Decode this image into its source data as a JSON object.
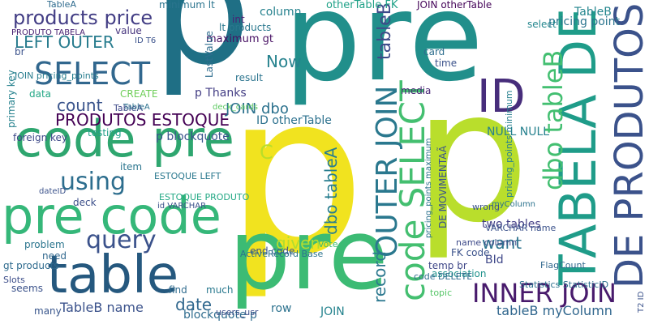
{
  "wordcloud": {
    "words": [
      {
        "text": "p",
        "color": "#1f6f85"
      },
      {
        "text": "p",
        "color": "#f1e31f"
      },
      {
        "text": "pre",
        "color": "#218f8b"
      },
      {
        "text": "p",
        "color": "#b9de2c"
      },
      {
        "text": "pre",
        "color": "#3cbb74"
      },
      {
        "text": "code pre",
        "color": "#2ea66f"
      },
      {
        "text": "pre code",
        "color": "#35b779"
      },
      {
        "text": "table",
        "color": "#25587e"
      },
      {
        "text": "TABELA DE",
        "color": "#1f9c89"
      },
      {
        "text": "DE PRODUTOS",
        "color": "#3b528b"
      },
      {
        "text": "ID",
        "color": "#472d7b"
      },
      {
        "text": "SELECT",
        "color": "#31678e"
      },
      {
        "text": "code SELECT",
        "color": "#44bf70"
      },
      {
        "text": "OUTER JOIN",
        "color": "#2a788e"
      },
      {
        "text": "dbo tableB",
        "color": "#43bf71"
      },
      {
        "text": "INNER JOIN",
        "color": "#481a6c"
      },
      {
        "text": "using",
        "color": "#2d6e8e"
      },
      {
        "text": "query",
        "color": "#3b528b"
      },
      {
        "text": "products price",
        "color": "#433e85"
      },
      {
        "text": "LEFT OUTER",
        "color": "#287c8e"
      },
      {
        "text": "PRODUTOS ESTOQUE",
        "color": "#440154"
      },
      {
        "text": "count",
        "color": "#3a548c"
      },
      {
        "text": "given",
        "color": "#b1dd2f"
      },
      {
        "text": "want",
        "color": "#2c738e"
      },
      {
        "text": "date",
        "color": "#31688e"
      },
      {
        "text": "record",
        "color": "#2a778e"
      },
      {
        "text": "dbo tableA",
        "color": "#287d8e"
      },
      {
        "text": "Now",
        "color": "#26828e"
      },
      {
        "text": "JOIN dbo",
        "color": "#2c728e"
      },
      {
        "text": "tableB",
        "color": "#3e4a89"
      },
      {
        "text": "tableB myColumn",
        "color": "#31678e"
      },
      {
        "text": "TableB name",
        "color": "#3b528b"
      },
      {
        "text": "blockquote p",
        "color": "#2f6c8e"
      },
      {
        "text": "JOIN",
        "color": "#25838e"
      },
      {
        "text": "row",
        "color": "#2c728e"
      },
      {
        "text": "two tables",
        "color": "#433e85"
      },
      {
        "text": "BId",
        "color": "#3f4889"
      },
      {
        "text": "C",
        "color": "#bade28"
      },
      {
        "text": "lt products",
        "color": "#2a788e"
      },
      {
        "text": "p Thanks",
        "color": "#433d84"
      },
      {
        "text": "NULL NULL",
        "color": "#26818e"
      },
      {
        "text": "pricing point",
        "color": "#2b758e"
      },
      {
        "text": "TableB",
        "color": "#24868e"
      },
      {
        "text": "DE MOVIMENTAÃ",
        "color": "#3b528b"
      },
      {
        "text": "ESTOQUE PRODUTO",
        "color": "#22a884"
      },
      {
        "text": "ID otherTable",
        "color": "#2c718e"
      },
      {
        "text": "p blockquote",
        "color": "#3a548c"
      },
      {
        "text": "maximum gt",
        "color": "#471063"
      },
      {
        "text": "column",
        "color": "#26828e"
      },
      {
        "text": "select",
        "color": "#24878e"
      },
      {
        "text": "JOIN otherTable",
        "color": "#450559"
      },
      {
        "text": "otherTable FK",
        "color": "#1fa187"
      },
      {
        "text": "minimum lt",
        "color": "#2b748e"
      },
      {
        "text": "TableA",
        "color": "#2f6b8e"
      },
      {
        "text": "int",
        "color": "#482374"
      },
      {
        "text": "value",
        "color": "#45337d"
      },
      {
        "text": "testing",
        "color": "#1fa088"
      },
      {
        "text": "item",
        "color": "#2b758e"
      },
      {
        "text": "deck",
        "color": "#3c4f8a"
      },
      {
        "text": "FK code",
        "color": "#3b528b"
      },
      {
        "text": "temp br",
        "color": "#3f4788"
      },
      {
        "text": "association",
        "color": "#20928c"
      },
      {
        "text": "media",
        "color": "#482576"
      },
      {
        "text": "card",
        "color": "#2e6e8e"
      },
      {
        "text": "time",
        "color": "#3b528b"
      },
      {
        "text": "name column",
        "color": "#3e4a89"
      },
      {
        "text": "find",
        "color": "#2f6b8e"
      },
      {
        "text": "much",
        "color": "#29798e"
      },
      {
        "text": "result",
        "color": "#2b748e"
      },
      {
        "text": "data",
        "color": "#22a785"
      },
      {
        "text": "CREATE",
        "color": "#6ece58"
      },
      {
        "text": "need",
        "color": "#31688e"
      },
      {
        "text": "problem",
        "color": "#2b758e"
      },
      {
        "text": "gt products",
        "color": "#2f6b8e"
      },
      {
        "text": "seems",
        "color": "#3b528b"
      },
      {
        "text": "many",
        "color": "#39568c"
      },
      {
        "text": "Slots",
        "color": "#3d4e8a"
      },
      {
        "text": "foreign key",
        "color": "#3e4989"
      },
      {
        "text": "primary key",
        "color": "#26828e"
      },
      {
        "text": "JOIN pricing_points",
        "color": "#287d8e"
      },
      {
        "text": "PRODUTO TABELA",
        "color": "#482071"
      },
      {
        "text": "TableA",
        "color": "#3e4a89"
      },
      {
        "text": "br",
        "color": "#3b528b"
      },
      {
        "text": "code DELETE",
        "color": "#2f6c8e"
      },
      {
        "text": "end code",
        "color": "#3b528b"
      },
      {
        "text": "LastValue",
        "color": "#2e6d8e"
      },
      {
        "text": "Vote",
        "color": "#3dbc74"
      },
      {
        "text": "ActiveRecord Base",
        "color": "#2c738e"
      },
      {
        "text": "users_usr",
        "color": "#3d4e8a"
      },
      {
        "text": "Statistics StatisticID",
        "color": "#2d718e"
      },
      {
        "text": "VARCHAR name",
        "color": "#3b528b"
      },
      {
        "text": "myColumn",
        "color": "#2c738e"
      },
      {
        "text": "topic",
        "color": "#56c667"
      },
      {
        "text": "wrong",
        "color": "#3b528b"
      },
      {
        "text": "FlagCount",
        "color": "#31688e"
      },
      {
        "text": "pricing_points minimum",
        "color": "#27808e"
      },
      {
        "text": "pricing_points maximum",
        "color": "#2c728e"
      },
      {
        "text": "T2 ID",
        "color": "#3b528b"
      },
      {
        "text": "ESTOQUE LEFT",
        "color": "#2a788e"
      },
      {
        "text": "id VARCHAR",
        "color": "#3b528b"
      },
      {
        "text": "dateID",
        "color": "#3b528b"
      },
      {
        "text": "deck_cards",
        "color": "#5ec962"
      },
      {
        "text": "ID T6",
        "color": "#3b528b"
      },
      {
        "text": "TableA",
        "color": "#2c728e"
      }
    ]
  }
}
